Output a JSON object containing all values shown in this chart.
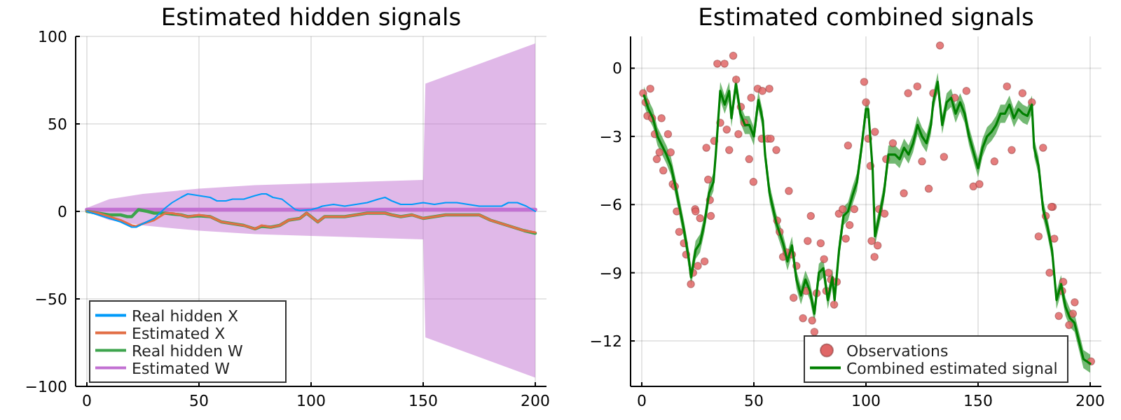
{
  "chart_data": [
    {
      "type": "line",
      "title": "Estimated hidden signals",
      "xlim": [
        -5,
        205
      ],
      "xticks": [
        0,
        50,
        100,
        150,
        200
      ],
      "ylim": [
        -100,
        100
      ],
      "yticks": [
        100,
        50,
        0,
        {
          "value": -50,
          "label": "−50"
        },
        {
          "value": -100,
          "label": "−100"
        }
      ],
      "grid": true,
      "legend": "bottom left",
      "series": [
        {
          "name": "Real hidden X",
          "color": "#009af9",
          "x": [
            0,
            5,
            10,
            15,
            20,
            22,
            25,
            30,
            35,
            38,
            42,
            45,
            50,
            55,
            58,
            62,
            65,
            70,
            75,
            78,
            80,
            83,
            87,
            90,
            93,
            95,
            100,
            103,
            105,
            110,
            115,
            120,
            125,
            130,
            133,
            136,
            140,
            145,
            150,
            155,
            160,
            165,
            170,
            175,
            180,
            185,
            188,
            192,
            196,
            200
          ],
          "values": [
            0,
            -2,
            -4,
            -6,
            -9,
            -9,
            -7,
            -4,
            2,
            5,
            8,
            10,
            9,
            8,
            6,
            6,
            7,
            7,
            9,
            10,
            10,
            8,
            7,
            4,
            1,
            0.5,
            1,
            2,
            3,
            4,
            3,
            4,
            5,
            7,
            8,
            6,
            4,
            4,
            5,
            4,
            5,
            5,
            4,
            3,
            3,
            3,
            5,
            5,
            3,
            0
          ]
        },
        {
          "name": "Estimated X",
          "color": "#e26f46",
          "x": [
            0,
            5,
            10,
            15,
            20,
            22,
            25,
            30,
            35,
            38,
            42,
            45,
            50,
            55,
            60,
            65,
            70,
            75,
            78,
            82,
            86,
            90,
            95,
            98,
            100,
            103,
            106,
            110,
            115,
            120,
            125,
            130,
            133,
            136,
            140,
            145,
            150,
            155,
            160,
            165,
            170,
            175,
            180,
            185,
            190,
            195,
            200
          ],
          "values": [
            0,
            -1,
            -3,
            -5,
            -8,
            -8.5,
            -7,
            -5,
            -1,
            -1,
            -2,
            -3,
            -2,
            -3,
            -6,
            -7,
            -8,
            -10,
            -8,
            -9,
            -8,
            -5,
            -4,
            -1,
            -3,
            -6,
            -3,
            -3,
            -3,
            -2,
            -1,
            -1,
            -1,
            -2,
            -3,
            -2,
            -4,
            -3,
            -2,
            -2,
            -2,
            -2,
            -5,
            -7,
            -9,
            -11,
            -12
          ]
        },
        {
          "name": "Real hidden W",
          "color": "#3da44d",
          "x": [
            0,
            5,
            10,
            15,
            18,
            20,
            23,
            27,
            30,
            35,
            38,
            42,
            45,
            50,
            55,
            60,
            65,
            70,
            75,
            78,
            82,
            86,
            90,
            95,
            98,
            100,
            103,
            106,
            110,
            115,
            120,
            125,
            130,
            133,
            136,
            140,
            145,
            150,
            155,
            160,
            165,
            170,
            175,
            180,
            185,
            190,
            195,
            200
          ],
          "values": [
            0,
            -1,
            -2,
            -2,
            -3,
            -3,
            1,
            0,
            -1,
            -1,
            -1.5,
            -2,
            -3,
            -2.5,
            -3,
            -6,
            -7,
            -8,
            -10,
            -8.5,
            -9,
            -8,
            -5,
            -4,
            -1,
            -3,
            -6,
            -3,
            -3,
            -3,
            -2,
            -1,
            -1,
            -1,
            -2,
            -3,
            -2,
            -4,
            -3,
            -2,
            -2,
            -2,
            -2,
            -5,
            -7,
            -9,
            -11,
            -12.5
          ]
        },
        {
          "name": "Estimated W",
          "color": "#c271d2",
          "x": [
            0,
            10,
            25,
            50,
            75,
            100,
            125,
            150,
            151,
            200
          ],
          "values": [
            1,
            1,
            1,
            1,
            1,
            1,
            1,
            1,
            1,
            1
          ],
          "lower": [
            0,
            -5,
            -8,
            -11,
            -13,
            -14,
            -15,
            -16,
            -72,
            -95
          ],
          "upper": [
            2,
            7,
            10,
            13,
            15,
            16,
            17,
            18,
            73,
            96
          ]
        }
      ]
    },
    {
      "type": "line",
      "title": "Estimated combined signals",
      "xlim": [
        -5,
        205
      ],
      "xticks": [
        0,
        50,
        100,
        150,
        200
      ],
      "ylim": [
        -14,
        1.4
      ],
      "yticks": [
        0,
        {
          "value": -3,
          "label": "−3"
        },
        {
          "value": -6,
          "label": "−6"
        },
        {
          "value": -9,
          "label": "−9"
        },
        {
          "value": -12,
          "label": "−12"
        }
      ],
      "grid": true,
      "legend": "bottom right",
      "series": [
        {
          "name": "Observations",
          "type": "scatter",
          "marker": "circle",
          "color": "#e06666",
          "x": [
            0.6,
            1.7,
            3.8,
            2.5,
            4.6,
            5.8,
            6.7,
            7.9,
            8.8,
            9.6,
            11.7,
            12.9,
            13.8,
            14.8,
            23.8,
            28.8,
            30.4,
            29.6,
            32.3,
            33.7,
            36.9,
            35,
            37.9,
            39,
            40.8,
            42.1,
            43.1,
            44.2,
            45.8,
            47.9,
            48.8,
            49.8,
            51.7,
            53.8,
            56.9,
            53.5,
            56.2,
            57.5,
            60,
            65.6,
            92,
            99.2,
            100,
            101,
            102,
            104,
            109,
            112,
            116.9,
            118.8,
            122.9,
            125,
            128,
            133,
            130,
            134.8,
            139.6,
            144.8,
            147.9,
            150.6,
            157.3,
            162.9,
            165,
            169.8,
            174,
            179,
            183.3,
            15.6,
            16.7,
            18.8,
            19.8,
            21.9,
            22.9,
            24,
            25,
            26,
            28,
            30.8,
            60.4,
            61.5,
            63,
            64.6,
            67,
            67.7,
            69,
            71.9,
            73.3,
            74,
            75.4,
            76,
            77,
            78,
            79.8,
            81.3,
            82.3,
            83.3,
            84.4,
            85.8,
            87,
            87.9,
            89.6,
            91,
            92.7,
            94.8,
            102.5,
            103.8,
            105.2,
            105.8,
            108.3,
            177,
            180.2,
            181.9,
            182.7,
            184,
            186,
            187.5,
            188,
            190.6,
            192.3,
            193.1,
            200.4
          ],
          "values": [
            -1.1,
            -1.5,
            -0.9,
            -2.1,
            -2.2,
            -2.9,
            -4.0,
            -3.7,
            -2.2,
            -4.5,
            -2.9,
            -3.7,
            -5.1,
            -5.2,
            -6.2,
            -3.5,
            -5.8,
            -4.9,
            -3.2,
            0.2,
            0.2,
            -2.4,
            -2.7,
            -3.6,
            0.55,
            -0.5,
            -2.9,
            -1.7,
            -2.4,
            -4.0,
            -1.3,
            -5.0,
            -0.9,
            -1.0,
            -0.9,
            -3.1,
            -3.1,
            -3.1,
            -3.6,
            -5.4,
            -3.4,
            -0.6,
            -1.5,
            -3.1,
            -4.3,
            -2.8,
            -4.0,
            -3.3,
            -5.5,
            -1.1,
            -0.8,
            -4.1,
            -5.3,
            1.0,
            -1.1,
            -3.9,
            -1.3,
            -1.0,
            -5.2,
            -5.1,
            -4.1,
            -0.8,
            -3.6,
            -1.1,
            -1.5,
            -3.5,
            -6.1,
            -6.3,
            -7.2,
            -7.7,
            -8.2,
            -9.5,
            -9.0,
            -6.3,
            -8.7,
            -6.6,
            -8.5,
            -6.5,
            -6.7,
            -7.2,
            -8.3,
            -8.1,
            -8.2,
            -10.1,
            -8.7,
            -11.0,
            -9.8,
            -7.6,
            -6.5,
            -11.1,
            -11.6,
            -9.9,
            -7.7,
            -8.4,
            -9.8,
            -9.0,
            -9.3,
            -10.4,
            -9.4,
            -6.4,
            -6.2,
            -7.5,
            -6.9,
            -6.2,
            -7.6,
            -8.3,
            -7.8,
            -6.2,
            -6.4,
            -7.4,
            -6.5,
            -9.0,
            -6.1,
            -7.5,
            -10.9,
            -9.8,
            -9.4,
            -11.3,
            -10.8,
            -10.3,
            -12.9
          ]
        },
        {
          "name": "Combined estimated signal",
          "type": "line",
          "color": "#008000",
          "x": [
            1,
            3,
            5,
            7,
            9,
            11,
            13,
            15,
            17,
            19,
            21,
            22,
            24,
            26,
            28,
            30,
            32,
            33,
            35,
            37,
            39,
            40,
            42,
            44,
            46,
            48,
            50,
            52,
            54,
            55,
            57,
            60,
            63,
            65,
            67,
            69,
            71,
            73,
            75,
            77,
            79,
            81,
            83,
            85,
            86,
            88,
            90,
            92,
            94,
            96,
            98,
            100,
            101,
            103,
            104,
            106,
            108,
            110,
            113,
            115,
            117,
            119,
            121,
            123,
            125,
            127,
            129,
            130,
            132,
            134,
            136,
            138,
            140,
            142,
            144,
            146,
            148,
            150,
            152,
            154,
            156,
            158,
            160,
            162,
            164,
            166,
            168,
            170,
            172,
            174,
            175,
            177,
            179,
            181,
            183,
            185,
            187,
            189,
            191,
            193,
            195,
            197,
            200
          ],
          "values": [
            -1.2,
            -1.8,
            -2.2,
            -3.0,
            -3.4,
            -3.8,
            -4.3,
            -5.2,
            -6.2,
            -7.2,
            -8.4,
            -9.2,
            -8.0,
            -7.7,
            -6.8,
            -5.5,
            -5.0,
            -3.8,
            -1.0,
            -1.6,
            -1.0,
            -2.2,
            -0.7,
            -2.0,
            -2.5,
            -2.5,
            -3.0,
            -1.4,
            -2.3,
            -3.8,
            -5.5,
            -6.8,
            -7.7,
            -8.5,
            -7.8,
            -9.3,
            -10.0,
            -9.3,
            -9.8,
            -10.8,
            -9.0,
            -8.8,
            -10.2,
            -9.2,
            -10.2,
            -8.0,
            -6.5,
            -6.3,
            -5.6,
            -5.0,
            -3.5,
            -1.8,
            -1.8,
            -4.5,
            -7.4,
            -6.5,
            -5.5,
            -3.8,
            -3.8,
            -4.0,
            -3.5,
            -3.8,
            -3.3,
            -2.5,
            -3.0,
            -3.3,
            -2.5,
            -1.5,
            -0.6,
            -2.5,
            -1.5,
            -1.3,
            -2.0,
            -1.5,
            -2.0,
            -3.0,
            -3.7,
            -4.4,
            -3.5,
            -3.0,
            -2.8,
            -2.5,
            -2.0,
            -2.0,
            -1.6,
            -2.2,
            -1.8,
            -2.0,
            -2.1,
            -1.6,
            -3.5,
            -4.3,
            -6.2,
            -7.0,
            -8.0,
            -10.2,
            -9.5,
            -10.5,
            -11.0,
            -11.2,
            -12.0,
            -12.8,
            -13.0
          ],
          "lower": [
            -1.6,
            -2.2,
            -2.6,
            -3.4,
            -3.8,
            -4.2,
            -4.7,
            -5.6,
            -6.6,
            -7.6,
            -8.8,
            -9.6,
            -8.4,
            -8.1,
            -7.2,
            -5.9,
            -5.4,
            -4.2,
            -1.4,
            -2.0,
            -1.4,
            -2.6,
            -1.1,
            -2.4,
            -2.9,
            -2.9,
            -3.4,
            -1.8,
            -2.7,
            -4.2,
            -5.9,
            -7.2,
            -8.1,
            -8.9,
            -8.2,
            -9.7,
            -10.4,
            -9.7,
            -10.2,
            -11.2,
            -9.4,
            -9.2,
            -10.6,
            -9.6,
            -10.6,
            -8.4,
            -6.9,
            -6.7,
            -6.0,
            -5.4,
            -3.9,
            -2.2,
            -2.2,
            -4.9,
            -7.8,
            -6.9,
            -5.9,
            -4.2,
            -4.2,
            -4.4,
            -3.9,
            -4.2,
            -3.7,
            -2.9,
            -3.4,
            -3.7,
            -2.9,
            -1.9,
            -1.0,
            -2.9,
            -1.9,
            -1.7,
            -2.4,
            -1.9,
            -2.4,
            -3.4,
            -4.1,
            -4.8,
            -3.9,
            -3.4,
            -3.2,
            -2.9,
            -2.4,
            -2.4,
            -2.0,
            -2.6,
            -2.2,
            -2.4,
            -2.5,
            -2.0,
            -3.9,
            -4.7,
            -6.6,
            -7.4,
            -8.4,
            -10.6,
            -9.9,
            -10.9,
            -11.4,
            -11.6,
            -12.4,
            -13.2,
            -13.4
          ],
          "upper": [
            -0.8,
            -1.4,
            -1.8,
            -2.6,
            -3.0,
            -3.4,
            -3.9,
            -4.8,
            -5.8,
            -6.8,
            -8.0,
            -8.8,
            -7.6,
            -7.3,
            -6.4,
            -5.1,
            -4.6,
            -3.4,
            -0.6,
            -1.2,
            -0.6,
            -1.8,
            -0.3,
            -1.6,
            -2.1,
            -2.1,
            -2.6,
            -1.0,
            -1.9,
            -3.4,
            -5.1,
            -6.4,
            -7.3,
            -8.1,
            -7.4,
            -8.9,
            -9.6,
            -8.9,
            -9.4,
            -10.4,
            -8.6,
            -8.4,
            -9.8,
            -8.8,
            -9.8,
            -7.6,
            -6.1,
            -5.9,
            -5.2,
            -4.6,
            -3.1,
            -1.4,
            -1.4,
            -4.1,
            -7.0,
            -6.1,
            -5.1,
            -3.4,
            -3.4,
            -3.6,
            -3.1,
            -3.4,
            -2.9,
            -2.1,
            -2.6,
            -2.9,
            -2.1,
            -1.1,
            -0.2,
            -2.1,
            -1.1,
            -0.9,
            -1.6,
            -1.1,
            -1.6,
            -2.6,
            -3.3,
            -4.0,
            -3.1,
            -2.6,
            -2.4,
            -2.1,
            -1.6,
            -1.6,
            -1.2,
            -1.8,
            -1.4,
            -1.6,
            -1.7,
            -1.2,
            -3.1,
            -3.9,
            -5.8,
            -6.6,
            -7.6,
            -9.8,
            -9.1,
            -10.1,
            -10.6,
            -10.8,
            -11.6,
            -12.4,
            -12.6
          ]
        }
      ]
    }
  ]
}
